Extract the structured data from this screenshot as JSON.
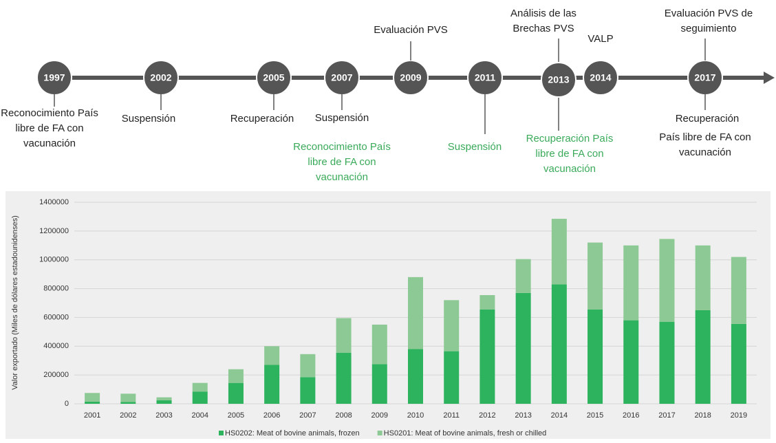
{
  "timeline": {
    "events": [
      {
        "year": "1997",
        "above": [],
        "below": [
          {
            "color": "#222222",
            "lines": [
              "Reconocimiento País",
              "libre de FA con",
              "vacunación"
            ]
          }
        ]
      },
      {
        "year": "2002",
        "above": [],
        "below": [
          {
            "color": "#222222",
            "lines": [
              "Suspensión"
            ]
          }
        ]
      },
      {
        "year": "2005",
        "above": [],
        "below": [
          {
            "color": "#222222",
            "lines": [
              "Recuperación"
            ]
          }
        ]
      },
      {
        "year": "2007",
        "above": [],
        "below": [
          {
            "color": "#222222",
            "lines": [
              "Suspensión"
            ]
          },
          {
            "color": "#3aaa5a",
            "lines": [
              "Reconocimiento País",
              "libre de FA con",
              "vacunación"
            ]
          }
        ]
      },
      {
        "year": "2009",
        "above": [
          "Evaluación PVS"
        ],
        "below": []
      },
      {
        "year": "2011",
        "above": [],
        "below": [
          {
            "color": "#3aaa5a",
            "lines": [
              "Suspensión"
            ]
          }
        ]
      },
      {
        "year": "2013",
        "above": [
          "Análisis de las",
          "Brechas PVS"
        ],
        "below": [
          {
            "color": "#3aaa5a",
            "lines": [
              "Recuperación País",
              "libre de FA con",
              "vacunación"
            ]
          }
        ]
      },
      {
        "year": "2014",
        "above": [
          "VALP"
        ],
        "below": []
      },
      {
        "year": "2017",
        "above": [
          "Evaluación PVS de",
          "seguimiento"
        ],
        "below": [
          {
            "color": "#222222",
            "lines": [
              "Recuperación"
            ]
          },
          {
            "color": "#222222",
            "lines": [
              "País libre de FA con",
              "vacunación"
            ]
          }
        ]
      }
    ]
  },
  "chart_data": {
    "type": "stacked_bar",
    "y_label": "Valor exportado (Miles de dólares estadounidenses)",
    "categories": [
      "2001",
      "2002",
      "2003",
      "2004",
      "2005",
      "2006",
      "2007",
      "2008",
      "2009",
      "2010",
      "2011",
      "2012",
      "2013",
      "2014",
      "2015",
      "2016",
      "2017",
      "2018",
      "2019"
    ],
    "series": [
      {
        "name": "HS0202: Meat of bovine animals, frozen",
        "color": "#2db35d",
        "values": [
          15000,
          12000,
          25000,
          85000,
          145000,
          270000,
          185000,
          355000,
          275000,
          380000,
          365000,
          655000,
          770000,
          830000,
          655000,
          580000,
          570000,
          650000,
          555000
        ]
      },
      {
        "name": "HS0201: Meat of bovine animals, fresh or chilled",
        "color": "#8dc994",
        "values": [
          60000,
          58000,
          20000,
          60000,
          95000,
          130000,
          160000,
          240000,
          275000,
          500000,
          355000,
          100000,
          235000,
          455000,
          465000,
          520000,
          575000,
          450000,
          465000
        ]
      }
    ],
    "ylim": [
      0,
      1400000
    ],
    "yticks": [
      0,
      200000,
      400000,
      600000,
      800000,
      1000000,
      1200000,
      1400000
    ],
    "grid": true
  }
}
